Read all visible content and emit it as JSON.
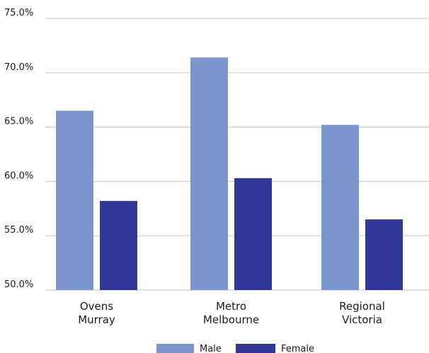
{
  "chart_data": {
    "type": "bar",
    "categories": [
      [
        "Ovens",
        "Murray"
      ],
      [
        "Metro",
        "Melbourne"
      ],
      [
        "Regional",
        "Victoria"
      ]
    ],
    "series": [
      {
        "name": "Male",
        "color": "#7b96cf",
        "values": [
          66.5,
          71.4,
          65.2
        ]
      },
      {
        "name": "Female",
        "color": "#313897",
        "values": [
          58.2,
          60.3,
          56.5
        ]
      }
    ],
    "yticks": [
      "50.0%",
      "55.0%",
      "60.0%",
      "65.0%",
      "70.0%",
      "75.0%"
    ],
    "ylim": [
      50,
      75
    ],
    "grid": true,
    "legend_position": "bottom"
  }
}
